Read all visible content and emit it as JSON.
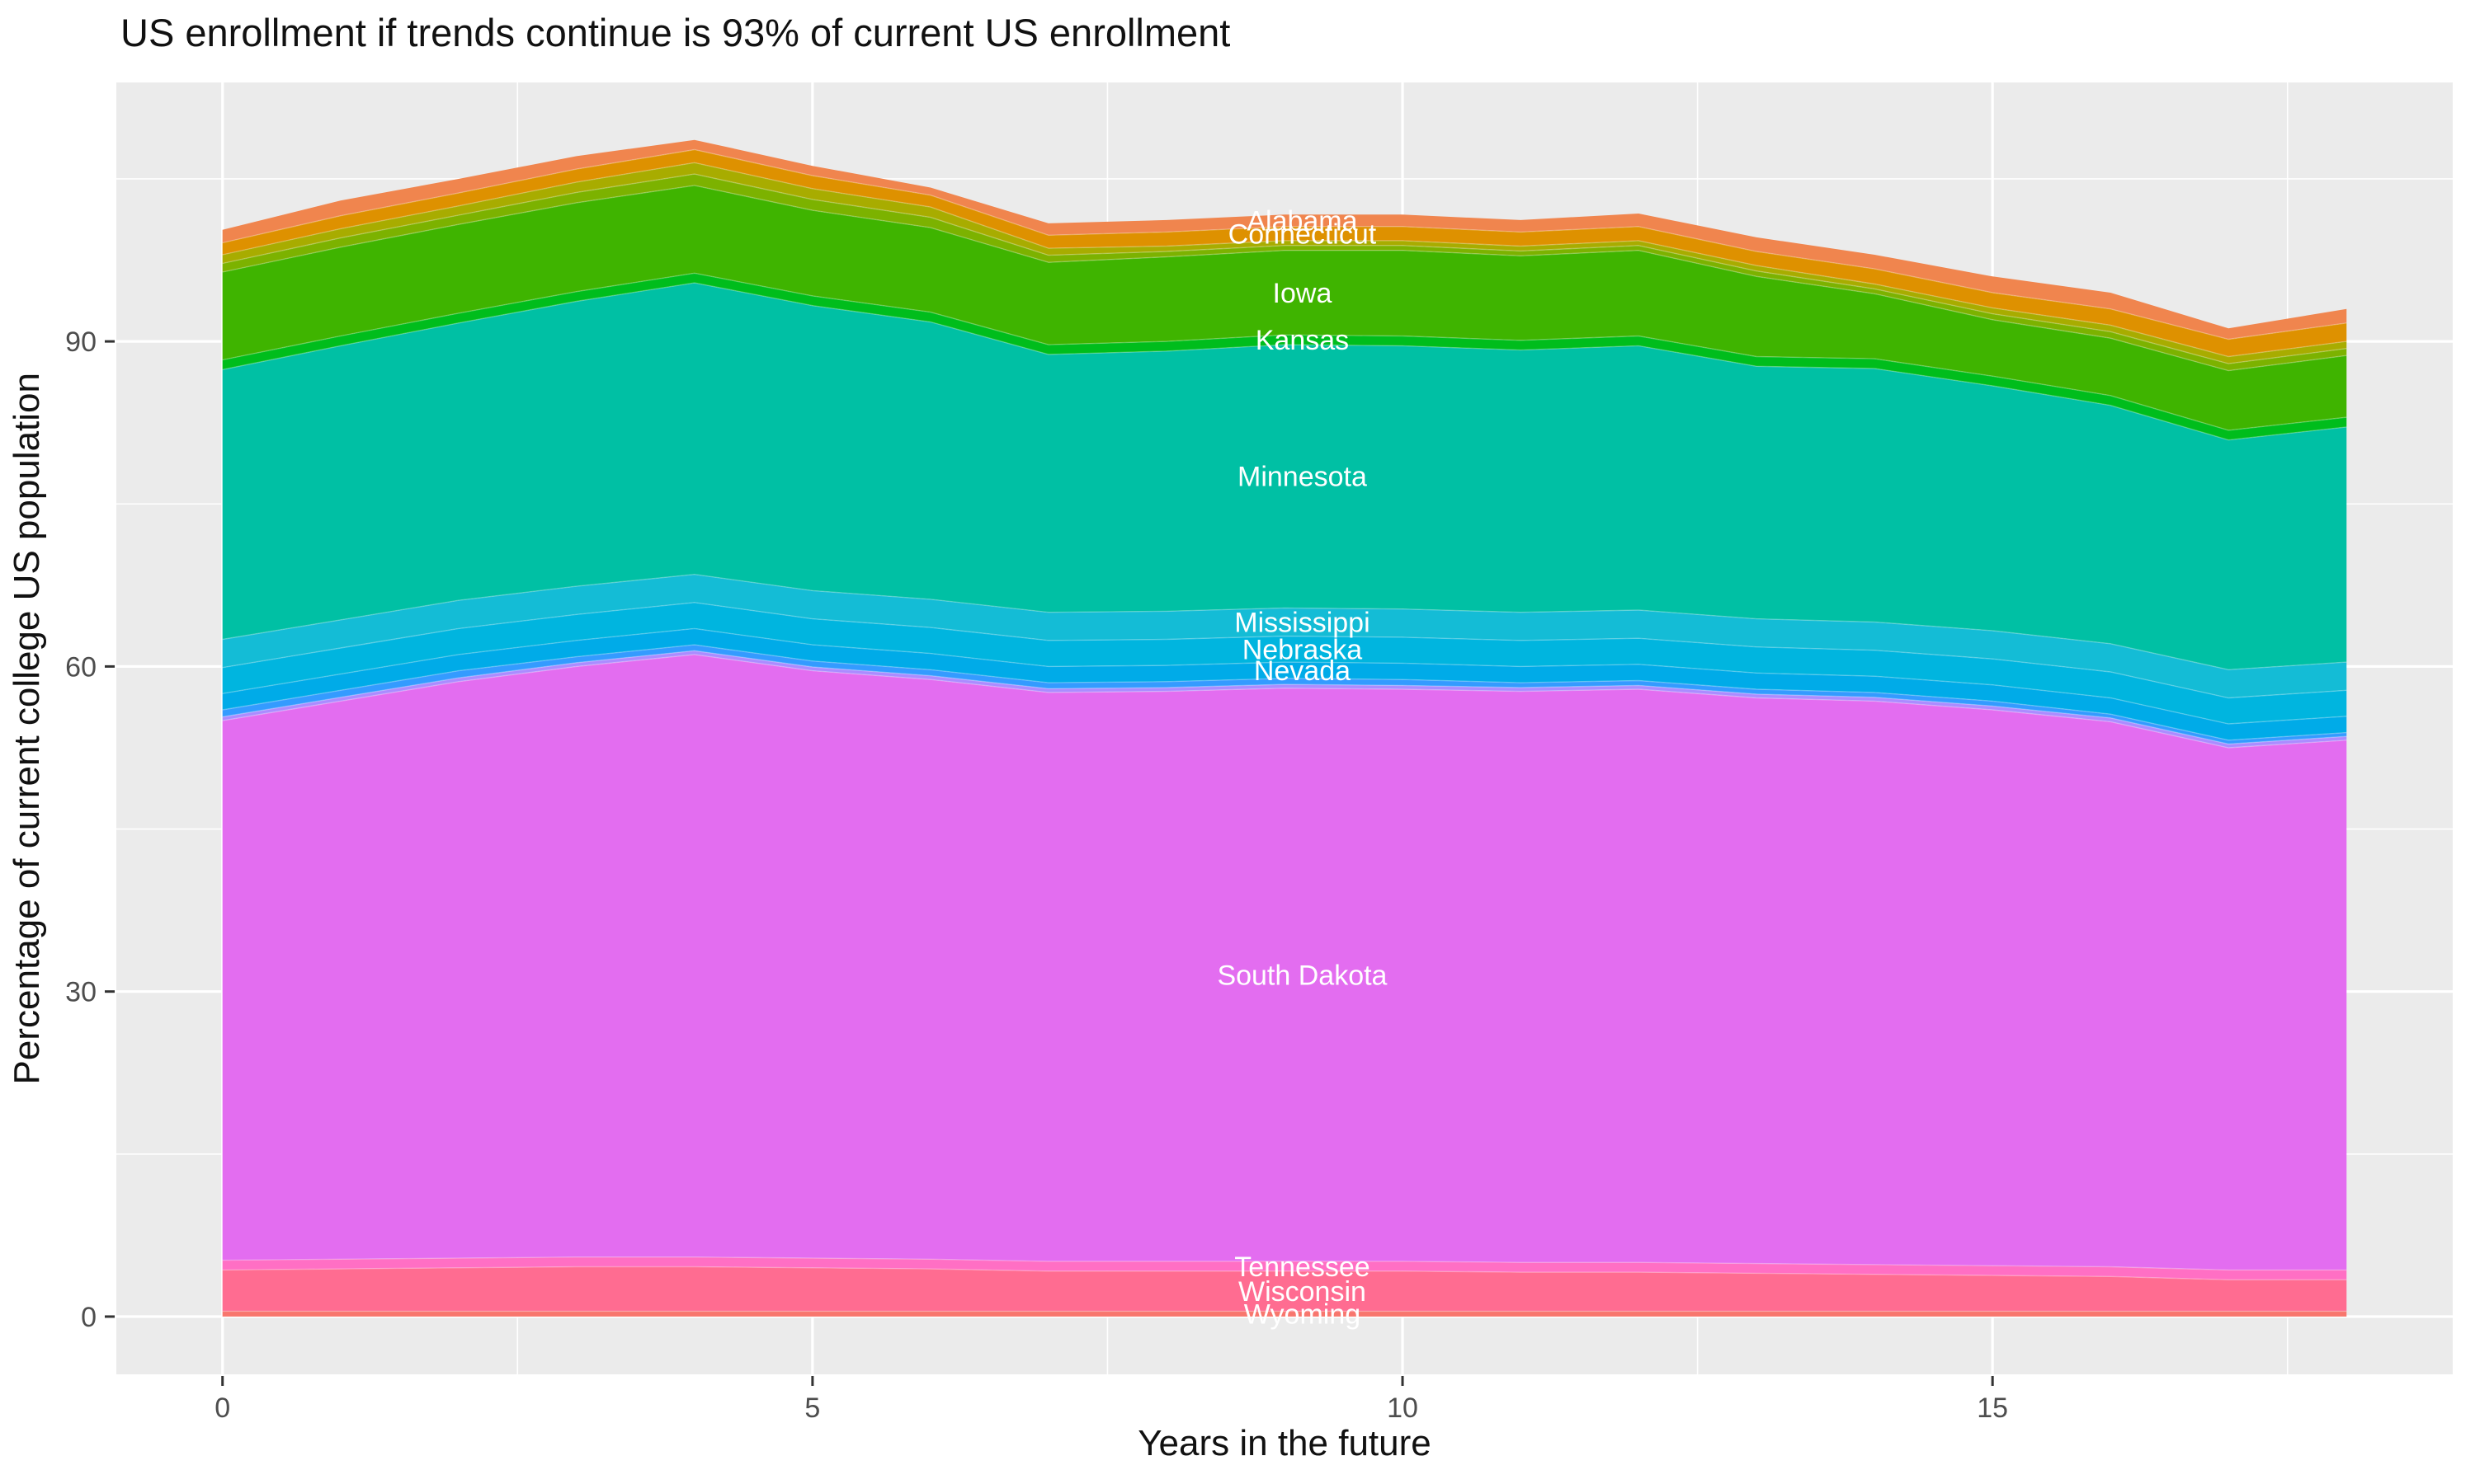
{
  "chart_data": {
    "type": "area",
    "stacked": true,
    "title": "US enrollment if trends continue is 93% of current US enrollment",
    "xlabel": "Years in the future",
    "ylabel": "Percentage of current college US population",
    "x": [
      0,
      1,
      2,
      3,
      4,
      5,
      6,
      7,
      8,
      9,
      10,
      11,
      12,
      13,
      14,
      15,
      16,
      17,
      18
    ],
    "xlim": [
      -0.9,
      18.9
    ],
    "ylim": [
      -5.33,
      113.9
    ],
    "x_ticks": [
      0,
      5,
      10,
      15
    ],
    "x_minor_ticks": [
      2.5,
      7.5,
      12.5,
      17.5
    ],
    "y_ticks": [
      0,
      30,
      60,
      90
    ],
    "y_minor_ticks": [
      15,
      45,
      75,
      105
    ],
    "grid": "on",
    "legend_position": "none",
    "panel_background": "#EBEBEB",
    "grid_color": "#FFFFFF",
    "tick_text_color": "#4D4D4D",
    "tick_mark_color": "#333333",
    "label_text_color": "#FFFFFF",
    "total_start_pct": 100.3,
    "total_peak_pct": 108.6,
    "total_end_pct": 93.0,
    "series": [
      {
        "label": "Wyoming",
        "color": "#F8766D",
        "values": [
          0.5,
          0.5,
          0.5,
          0.5,
          0.5,
          0.5,
          0.5,
          0.5,
          0.5,
          0.5,
          0.5,
          0.5,
          0.5,
          0.5,
          0.5,
          0.5,
          0.5,
          0.5,
          0.5
        ]
      },
      {
        "label": "Wisconsin",
        "color": "#FF6C91",
        "values": [
          3.8,
          3.9,
          4.0,
          4.1,
          4.1,
          4.0,
          3.9,
          3.7,
          3.7,
          3.7,
          3.7,
          3.6,
          3.6,
          3.5,
          3.4,
          3.3,
          3.2,
          2.9,
          2.9
        ]
      },
      {
        "label": "Tennessee",
        "color": "#FF6FC4",
        "values": [
          0.9,
          0.9,
          0.9,
          0.9,
          0.9,
          0.9,
          0.9,
          0.9,
          0.9,
          0.9,
          0.9,
          0.9,
          0.9,
          0.9,
          0.9,
          0.9,
          0.9,
          0.9,
          0.9
        ]
      },
      {
        "label": "South Dakota",
        "color": "#E36DF0",
        "values": [
          49.8,
          51.5,
          53.2,
          54.5,
          55.6,
          54.2,
          53.5,
          52.5,
          52.6,
          52.9,
          52.8,
          52.7,
          52.9,
          52.2,
          52.0,
          51.3,
          50.3,
          48.2,
          48.9
        ]
      },
      {
        "label": null,
        "color": "#AB8CFF",
        "values": [
          0.35,
          0.35,
          0.35,
          0.35,
          0.35,
          0.35,
          0.35,
          0.35,
          0.35,
          0.35,
          0.35,
          0.35,
          0.35,
          0.35,
          0.35,
          0.35,
          0.35,
          0.35,
          0.35
        ]
      },
      {
        "label": null,
        "color": "#349BFF",
        "values": [
          0.65,
          0.65,
          0.65,
          0.55,
          0.55,
          0.55,
          0.55,
          0.55,
          0.55,
          0.55,
          0.55,
          0.45,
          0.45,
          0.45,
          0.45,
          0.45,
          0.35,
          0.35,
          0.35
        ]
      },
      {
        "label": "Nevada",
        "color": "#00ABE8",
        "values": [
          1.5,
          1.5,
          1.5,
          1.5,
          1.5,
          1.5,
          1.5,
          1.5,
          1.5,
          1.5,
          1.5,
          1.5,
          1.5,
          1.5,
          1.5,
          1.5,
          1.5,
          1.5,
          1.5
        ]
      },
      {
        "label": "Nebraska",
        "color": "#00B5DF",
        "values": [
          2.4,
          2.4,
          2.4,
          2.4,
          2.4,
          2.4,
          2.4,
          2.4,
          2.4,
          2.4,
          2.4,
          2.4,
          2.4,
          2.4,
          2.4,
          2.4,
          2.4,
          2.4,
          2.4
        ]
      },
      {
        "label": "Mississippi",
        "color": "#14BCD6",
        "values": [
          2.6,
          2.6,
          2.6,
          2.6,
          2.6,
          2.6,
          2.6,
          2.6,
          2.6,
          2.6,
          2.6,
          2.6,
          2.6,
          2.6,
          2.6,
          2.6,
          2.6,
          2.6,
          2.6
        ]
      },
      {
        "label": "Minnesota",
        "color": "#00C0A4",
        "values": [
          24.9,
          25.3,
          25.6,
          26.3,
          26.9,
          26.3,
          25.6,
          23.8,
          24.0,
          24.3,
          24.3,
          24.2,
          24.4,
          23.3,
          23.4,
          22.6,
          22.0,
          21.2,
          21.7
        ]
      },
      {
        "label": "Kansas",
        "color": "#00BD1C",
        "values": [
          0.9,
          0.9,
          0.9,
          0.9,
          0.9,
          0.9,
          0.9,
          0.9,
          0.9,
          0.9,
          0.9,
          0.9,
          0.9,
          0.9,
          0.9,
          0.9,
          0.9,
          0.9,
          0.9
        ]
      },
      {
        "label": "Iowa",
        "color": "#3FB400",
        "values": [
          8.1,
          8.2,
          8.2,
          8.2,
          8.1,
          7.9,
          7.8,
          7.6,
          7.8,
          7.8,
          7.9,
          7.8,
          7.9,
          7.4,
          6.0,
          5.2,
          5.3,
          5.5,
          5.7
        ]
      },
      {
        "label": null,
        "color": "#7CB200",
        "values": [
          0.8,
          0.85,
          0.85,
          0.95,
          1.05,
          1.0,
          0.95,
          0.65,
          0.5,
          0.45,
          0.45,
          0.45,
          0.45,
          0.5,
          0.45,
          0.55,
          0.6,
          0.65,
          0.65
        ]
      },
      {
        "label": null,
        "color": "#A8AC00",
        "values": [
          0.8,
          0.85,
          0.85,
          0.95,
          1.05,
          1.0,
          0.95,
          0.65,
          0.5,
          0.45,
          0.45,
          0.45,
          0.45,
          0.5,
          0.45,
          0.55,
          0.6,
          0.65,
          0.65
        ]
      },
      {
        "label": "Connecticut",
        "color": "#DE9100",
        "values": [
          1.1,
          1.2,
          1.2,
          1.2,
          1.2,
          1.2,
          1.1,
          1.2,
          1.3,
          1.3,
          1.3,
          1.3,
          1.3,
          1.3,
          1.4,
          1.4,
          1.5,
          1.6,
          1.7
        ]
      },
      {
        "label": "Alabama",
        "color": "#F0854E",
        "values": [
          1.2,
          1.4,
          1.3,
          1.2,
          0.9,
          0.9,
          0.7,
          1.1,
          1.1,
          1.1,
          1.1,
          1.1,
          1.2,
          1.3,
          1.3,
          1.5,
          1.5,
          1.0,
          1.3
        ]
      }
    ]
  }
}
